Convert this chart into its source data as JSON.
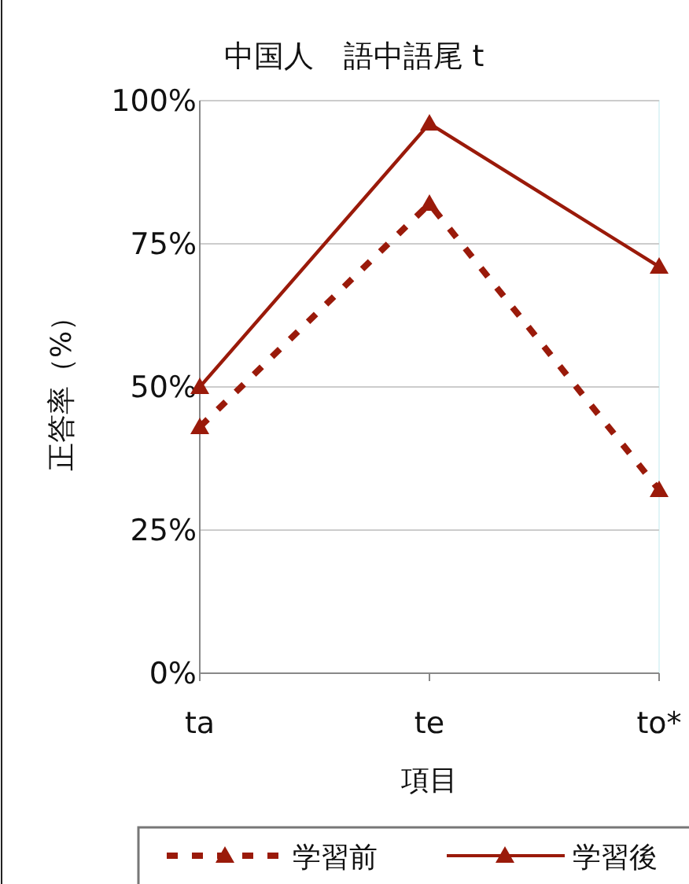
{
  "chart_data": {
    "type": "line",
    "title": "中国人　語中語尾 t",
    "xlabel": "項目",
    "ylabel": "正答率（%）",
    "categories": [
      "ta",
      "te",
      "to*"
    ],
    "series": [
      {
        "name": "学習前",
        "color": "#9a1a0a",
        "values": [
          43,
          82,
          32
        ],
        "line_style": "dashed"
      },
      {
        "name": "学習後",
        "color": "#9a1a0a",
        "values": [
          50,
          96,
          71
        ],
        "line_style": "solid"
      }
    ],
    "ylim": [
      0,
      100
    ],
    "yticks": [
      {
        "value": 0,
        "label": "0%"
      },
      {
        "value": 25,
        "label": "25%"
      },
      {
        "value": 50,
        "label": "50%"
      },
      {
        "value": 75,
        "label": "75%"
      },
      {
        "value": 100,
        "label": "100%"
      }
    ],
    "grid": "y",
    "legend": "bottom",
    "marker": "triangle"
  }
}
